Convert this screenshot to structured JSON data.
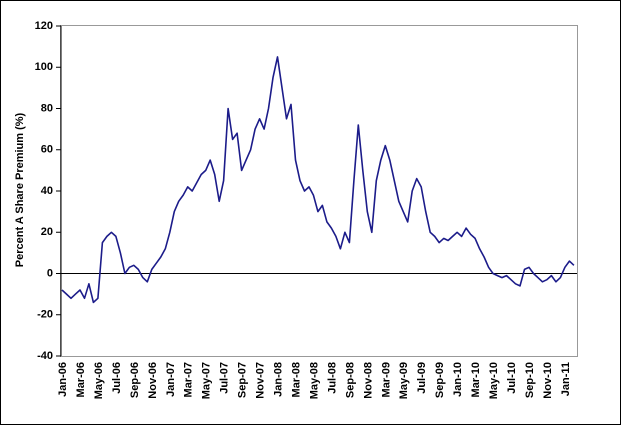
{
  "chart_data": {
    "type": "line",
    "y_label": "Percent A Share Premium (%)",
    "categories": [
      "Jan-06",
      null,
      null,
      null,
      "Mar-06",
      null,
      null,
      null,
      "May-06",
      null,
      null,
      null,
      "Jul-06",
      null,
      null,
      null,
      "Sep-06",
      null,
      null,
      null,
      "Nov-06",
      null,
      null,
      null,
      "Jan-07",
      null,
      null,
      null,
      "Mar-07",
      null,
      null,
      null,
      "May-07",
      null,
      null,
      null,
      "Jul-07",
      null,
      null,
      null,
      "Sep-07",
      null,
      null,
      null,
      "Nov-07",
      null,
      null,
      null,
      "Jan-08",
      null,
      null,
      null,
      "Mar-08",
      null,
      null,
      null,
      "May-08",
      null,
      null,
      null,
      "Jul-08",
      null,
      null,
      null,
      "Sep-08",
      null,
      null,
      null,
      "Nov-08",
      null,
      null,
      null,
      "Mar-09",
      null,
      null,
      null,
      "May-09",
      null,
      null,
      null,
      "Jul-09",
      null,
      null,
      null,
      "Sep-09",
      null,
      null,
      null,
      "Jan-10",
      null,
      null,
      null,
      "Mar-10",
      null,
      null,
      null,
      "May-10",
      null,
      null,
      null,
      "Jul-10",
      null,
      null,
      null,
      "Sep-10",
      null,
      null,
      null,
      "Nov-10",
      null,
      null,
      null,
      "Jan-11",
      null,
      null
    ],
    "series": [
      {
        "name": "A Share Premium",
        "color": "#1c1c8a",
        "values": [
          -8,
          -10,
          -12,
          -10,
          -8,
          -12,
          -5,
          -14,
          -12,
          15,
          18,
          20,
          18,
          10,
          0,
          3,
          4,
          2,
          -2,
          -4,
          2,
          5,
          8,
          12,
          20,
          30,
          35,
          38,
          42,
          40,
          44,
          48,
          50,
          55,
          48,
          35,
          45,
          80,
          65,
          68,
          50,
          55,
          60,
          70,
          75,
          70,
          80,
          95,
          105,
          90,
          75,
          82,
          55,
          45,
          40,
          42,
          38,
          30,
          33,
          25,
          22,
          18,
          12,
          20,
          15,
          45,
          72,
          50,
          30,
          20,
          45,
          55,
          62,
          55,
          45,
          35,
          30,
          25,
          40,
          46,
          42,
          30,
          20,
          18,
          15,
          17,
          16,
          18,
          20,
          18,
          22,
          19,
          17,
          12,
          8,
          3,
          0,
          -1,
          -2,
          -1,
          -3,
          -5,
          -6,
          2,
          3,
          0,
          -2,
          -4,
          -3,
          -1,
          -4,
          -2,
          3,
          6,
          4
        ]
      }
    ],
    "ylim": [
      -40,
      120
    ],
    "yticks": [
      -40,
      -20,
      0,
      20,
      40,
      60,
      80,
      100,
      120
    ]
  }
}
